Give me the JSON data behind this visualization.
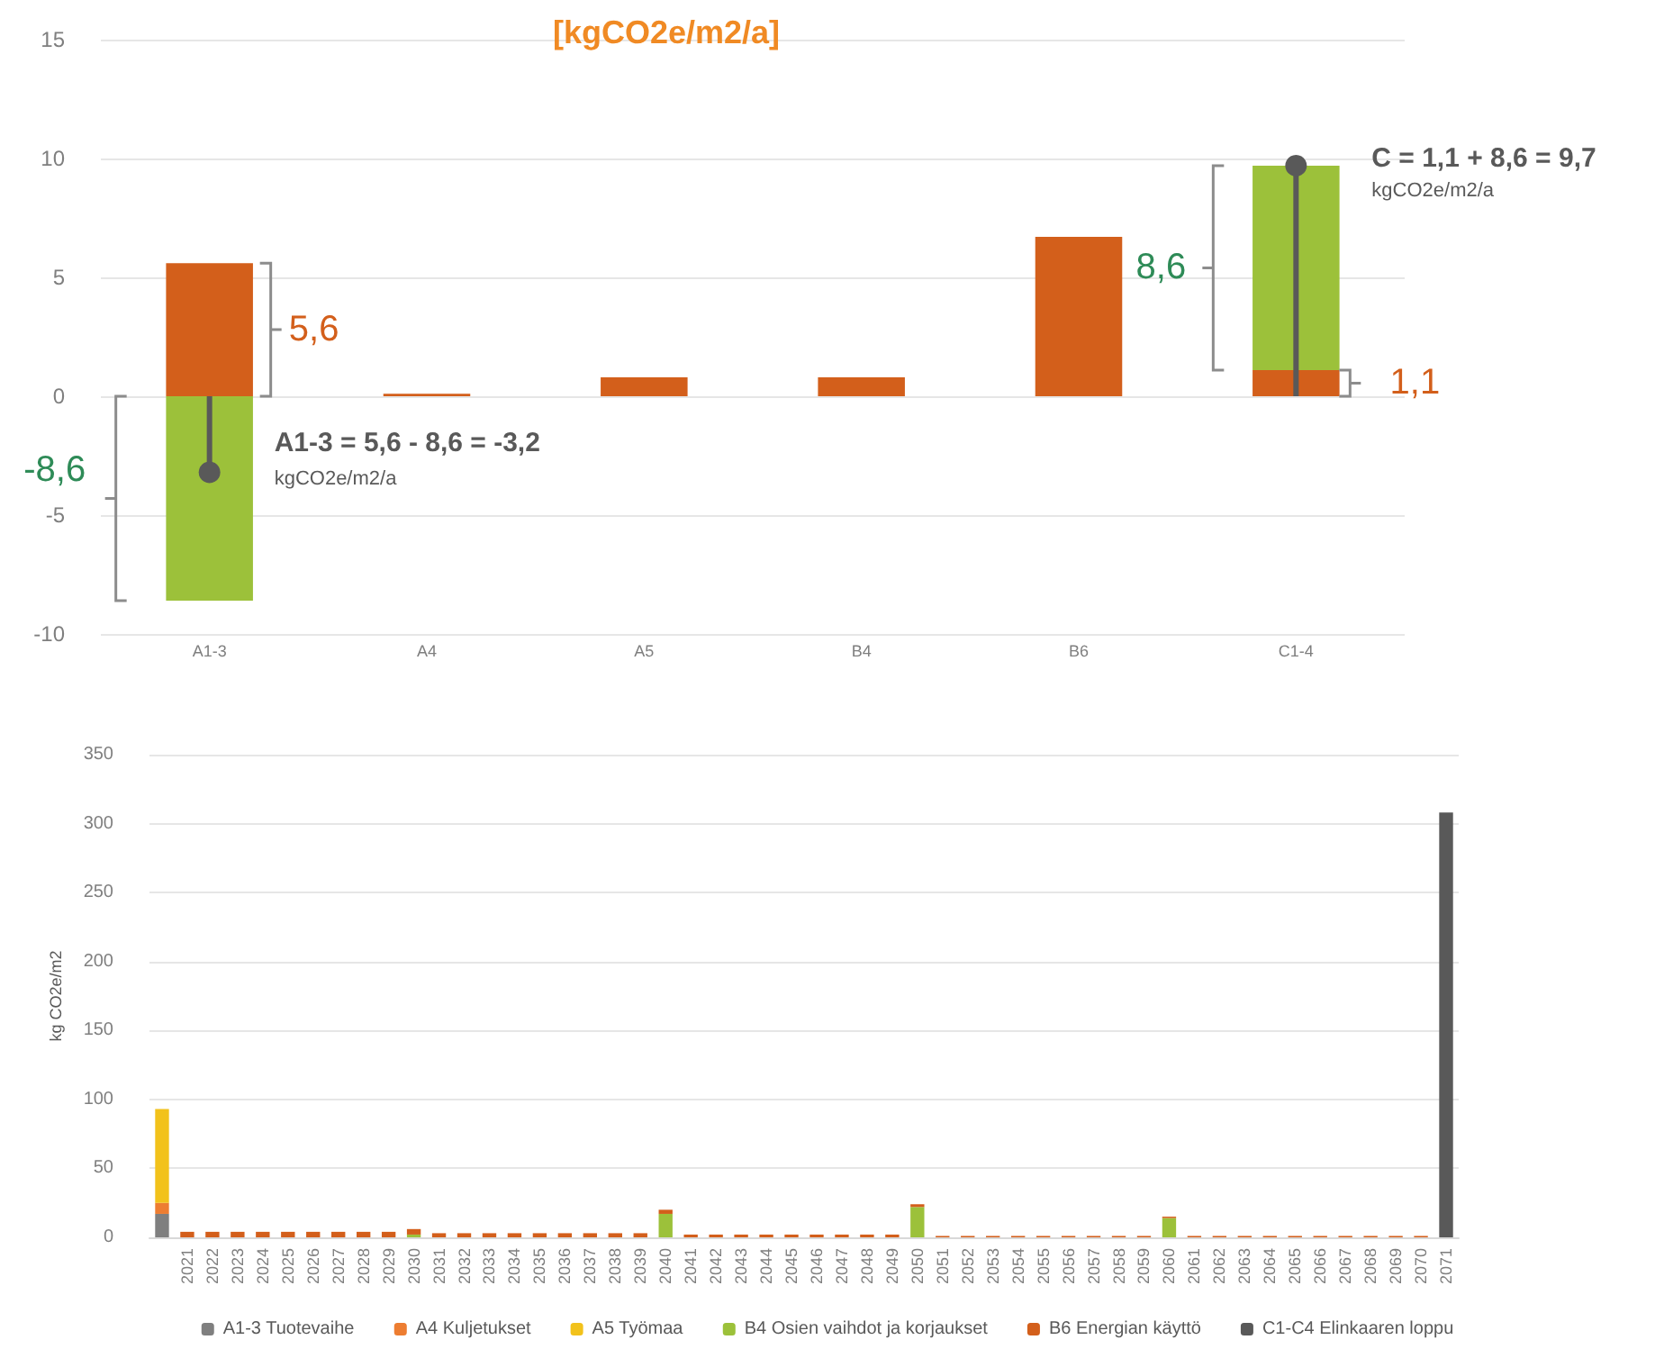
{
  "chart_data": [
    {
      "type": "bar",
      "title": "[kgCO2e/m2/a]",
      "categories": [
        "A1-3",
        "A4",
        "A5",
        "B4",
        "B6",
        "C1-4"
      ],
      "stacked": true,
      "grid": "y",
      "legend": false,
      "ylim": [
        -10,
        15
      ],
      "yticks": [
        -10,
        -5,
        0,
        5,
        10,
        15
      ],
      "series": [
        {
          "color": "#d35f1b",
          "values": [
            5.6,
            0.1,
            0.8,
            0.8,
            6.7,
            1.1
          ]
        },
        {
          "color": "#9cc13a",
          "values": [
            -8.6,
            0,
            0,
            0,
            0,
            8.6
          ]
        },
        {
          "type": "lollipop",
          "color": "#595959",
          "x": [
            "A1-3",
            "C1-4"
          ],
          "values": [
            -3.2,
            9.7
          ]
        }
      ],
      "annotations": [
        "5,6",
        "-8,6",
        {
          "text": "A1-3 = 5,6 - 8,6 = -3,2",
          "x": "A1-3",
          "y": -3.2
        },
        "kgCO2e/m2/a",
        "8,6",
        "1,1",
        {
          "text": "C = 1,1 + 8,6 = 9,7",
          "x": "C1-4",
          "y": 9.7
        },
        "kgCO2e/m2/a"
      ]
    },
    {
      "type": "bar",
      "ylabel": "kg CO2e/m2",
      "stacked": true,
      "grid": "y",
      "legend": "bottom",
      "ylim": [
        0,
        350
      ],
      "yticks": [
        0,
        50,
        100,
        150,
        200,
        250,
        300,
        350
      ],
      "categories": [
        null,
        "2021",
        "2022",
        "2023",
        "2024",
        "2025",
        "2026",
        "2027",
        "2028",
        "2029",
        "2030",
        "2031",
        "2032",
        "2033",
        "2034",
        "2035",
        "2036",
        "2037",
        "2038",
        "2039",
        "2040",
        "2041",
        "2042",
        "2043",
        "2044",
        "2045",
        "2046",
        "2047",
        "2048",
        "2049",
        "2050",
        "2051",
        "2052",
        "2053",
        "2054",
        "2055",
        "2056",
        "2057",
        "2058",
        "2059",
        "2060",
        "2061",
        "2062",
        "2063",
        "2064",
        "2065",
        "2066",
        "2067",
        "2068",
        "2069",
        "2070",
        "2071"
      ],
      "series": [
        {
          "name": "A1-3 Tuotevaihe",
          "color": "#7f7f7f",
          "values": [
            17,
            0,
            0,
            0,
            0,
            0,
            0,
            0,
            0,
            0,
            0,
            0,
            0,
            0,
            0,
            0,
            0,
            0,
            0,
            0,
            0,
            0,
            0,
            0,
            0,
            0,
            0,
            0,
            0,
            0,
            0,
            0,
            0,
            0,
            0,
            0,
            0,
            0,
            0,
            0,
            0,
            0,
            0,
            0,
            0,
            0,
            0,
            0,
            0,
            0,
            0,
            0
          ]
        },
        {
          "name": "A4 Kuljetukset",
          "color": "#ed7d31",
          "values": [
            8,
            0,
            0,
            0,
            0,
            0,
            0,
            0,
            0,
            0,
            0,
            0,
            0,
            0,
            0,
            0,
            0,
            0,
            0,
            0,
            0,
            0,
            0,
            0,
            0,
            0,
            0,
            0,
            0,
            0,
            0,
            0,
            0,
            0,
            0,
            0,
            0,
            0,
            0,
            0,
            0,
            0,
            0,
            0,
            0,
            0,
            0,
            0,
            0,
            0,
            0,
            0
          ]
        },
        {
          "name": "A5 Työmaa",
          "color": "#f2c21b",
          "values": [
            68,
            0,
            0,
            0,
            0,
            0,
            0,
            0,
            0,
            0,
            0,
            0,
            0,
            0,
            0,
            0,
            0,
            0,
            0,
            0,
            0,
            0,
            0,
            0,
            0,
            0,
            0,
            0,
            0,
            0,
            0,
            0,
            0,
            0,
            0,
            0,
            0,
            0,
            0,
            0,
            0,
            0,
            0,
            0,
            0,
            0,
            0,
            0,
            0,
            0,
            0,
            0
          ]
        },
        {
          "name": "B4 Osien vaihdot ja korjaukset",
          "color": "#9cc13a",
          "values": [
            0,
            0,
            0,
            0,
            0,
            0,
            0,
            0,
            0,
            0,
            2,
            0,
            0,
            0,
            0,
            0,
            0,
            0,
            0,
            0,
            17,
            0,
            0,
            0,
            0,
            0,
            0,
            0,
            0,
            0,
            22,
            0,
            0,
            0,
            0,
            0,
            0,
            0,
            0,
            0,
            14,
            0,
            0,
            0,
            0,
            0,
            0,
            0,
            0,
            0,
            0,
            0
          ]
        },
        {
          "name": "B6 Energian käyttö",
          "color": "#d35f1b",
          "values": [
            0,
            4,
            4,
            4,
            4,
            4,
            4,
            4,
            4,
            4,
            4,
            3,
            3,
            3,
            3,
            3,
            3,
            3,
            3,
            3,
            3,
            2,
            2,
            2,
            2,
            2,
            2,
            2,
            2,
            2,
            2,
            1,
            1,
            1,
            1,
            1,
            1,
            1,
            1,
            1,
            1,
            1,
            1,
            1,
            1,
            1,
            1,
            1,
            1,
            1,
            1,
            0
          ]
        },
        {
          "name": "C1-C4 Elinkaaren loppu",
          "color": "#595959",
          "values": [
            0,
            0,
            0,
            0,
            0,
            0,
            0,
            0,
            0,
            0,
            0,
            0,
            0,
            0,
            0,
            0,
            0,
            0,
            0,
            0,
            0,
            0,
            0,
            0,
            0,
            0,
            0,
            0,
            0,
            0,
            0,
            0,
            0,
            0,
            0,
            0,
            0,
            0,
            0,
            0,
            0,
            0,
            0,
            0,
            0,
            0,
            0,
            0,
            0,
            0,
            0,
            308
          ]
        }
      ]
    }
  ]
}
